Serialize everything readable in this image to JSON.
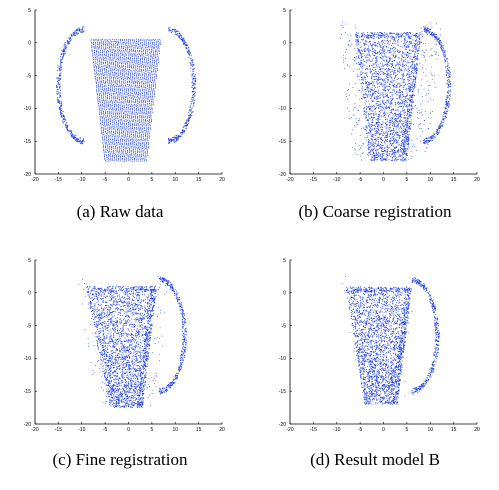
{
  "figure": {
    "point_color": "#1f3fe0",
    "point_style": "dense point cloud of a mug (dots)",
    "panels": [
      {
        "id": "a",
        "caption": "(a)  Raw data"
      },
      {
        "id": "b",
        "caption": "(b)  Coarse registration"
      },
      {
        "id": "c",
        "caption": "(c)  Fine registration"
      },
      {
        "id": "d",
        "caption": "(d)  Result model B"
      }
    ]
  },
  "chart_data": [
    {
      "type": "scatter",
      "title": "",
      "xlabel": "",
      "ylabel": "",
      "xlim": [
        -20,
        20
      ],
      "ylim": [
        -20,
        5
      ],
      "xticks": [
        -20,
        -15,
        -10,
        -5,
        0,
        5,
        10,
        15,
        20
      ],
      "yticks": [
        5,
        0,
        -5,
        -10,
        -15,
        -20
      ],
      "grid": false,
      "series": [
        {
          "shape": "mug body x[-8,7] y[-18,0.5], symmetric handles left and right"
        }
      ]
    },
    {
      "type": "scatter",
      "title": "",
      "xlabel": "",
      "ylabel": "",
      "xlim": [
        -20,
        20
      ],
      "ylim": [
        -20,
        5
      ],
      "xticks": [
        -20,
        -15,
        -10,
        -5,
        0,
        5,
        10,
        15,
        20
      ],
      "yticks": [
        5,
        0,
        -5,
        -10,
        -15,
        -20
      ],
      "grid": false,
      "series": [
        {
          "shape": "mug body x[-7,8] y[-18,1], handle right, scattered noise"
        }
      ]
    },
    {
      "type": "scatter",
      "title": "",
      "xlabel": "",
      "ylabel": "",
      "xlim": [
        -20,
        20
      ],
      "ylim": [
        -20,
        5
      ],
      "xticks": [
        -20,
        -15,
        -10,
        -5,
        0,
        5,
        10,
        15,
        20
      ],
      "yticks": [
        5,
        0,
        -5,
        -10,
        -15,
        -20
      ],
      "grid": false,
      "series": [
        {
          "shape": "mug body x[-9,6] y[-17.5,0.5], handle right"
        }
      ]
    },
    {
      "type": "scatter",
      "title": "",
      "xlabel": "",
      "ylabel": "",
      "xlim": [
        -20,
        20
      ],
      "ylim": [
        -20,
        5
      ],
      "xticks": [
        -20,
        -15,
        -10,
        -5,
        0,
        5,
        10,
        15,
        20
      ],
      "yticks": [
        5,
        0,
        -5,
        -10,
        -15,
        -20
      ],
      "grid": false,
      "series": [
        {
          "shape": "mug body x[-8,6] y[-17,0.5], handle right"
        }
      ]
    }
  ]
}
